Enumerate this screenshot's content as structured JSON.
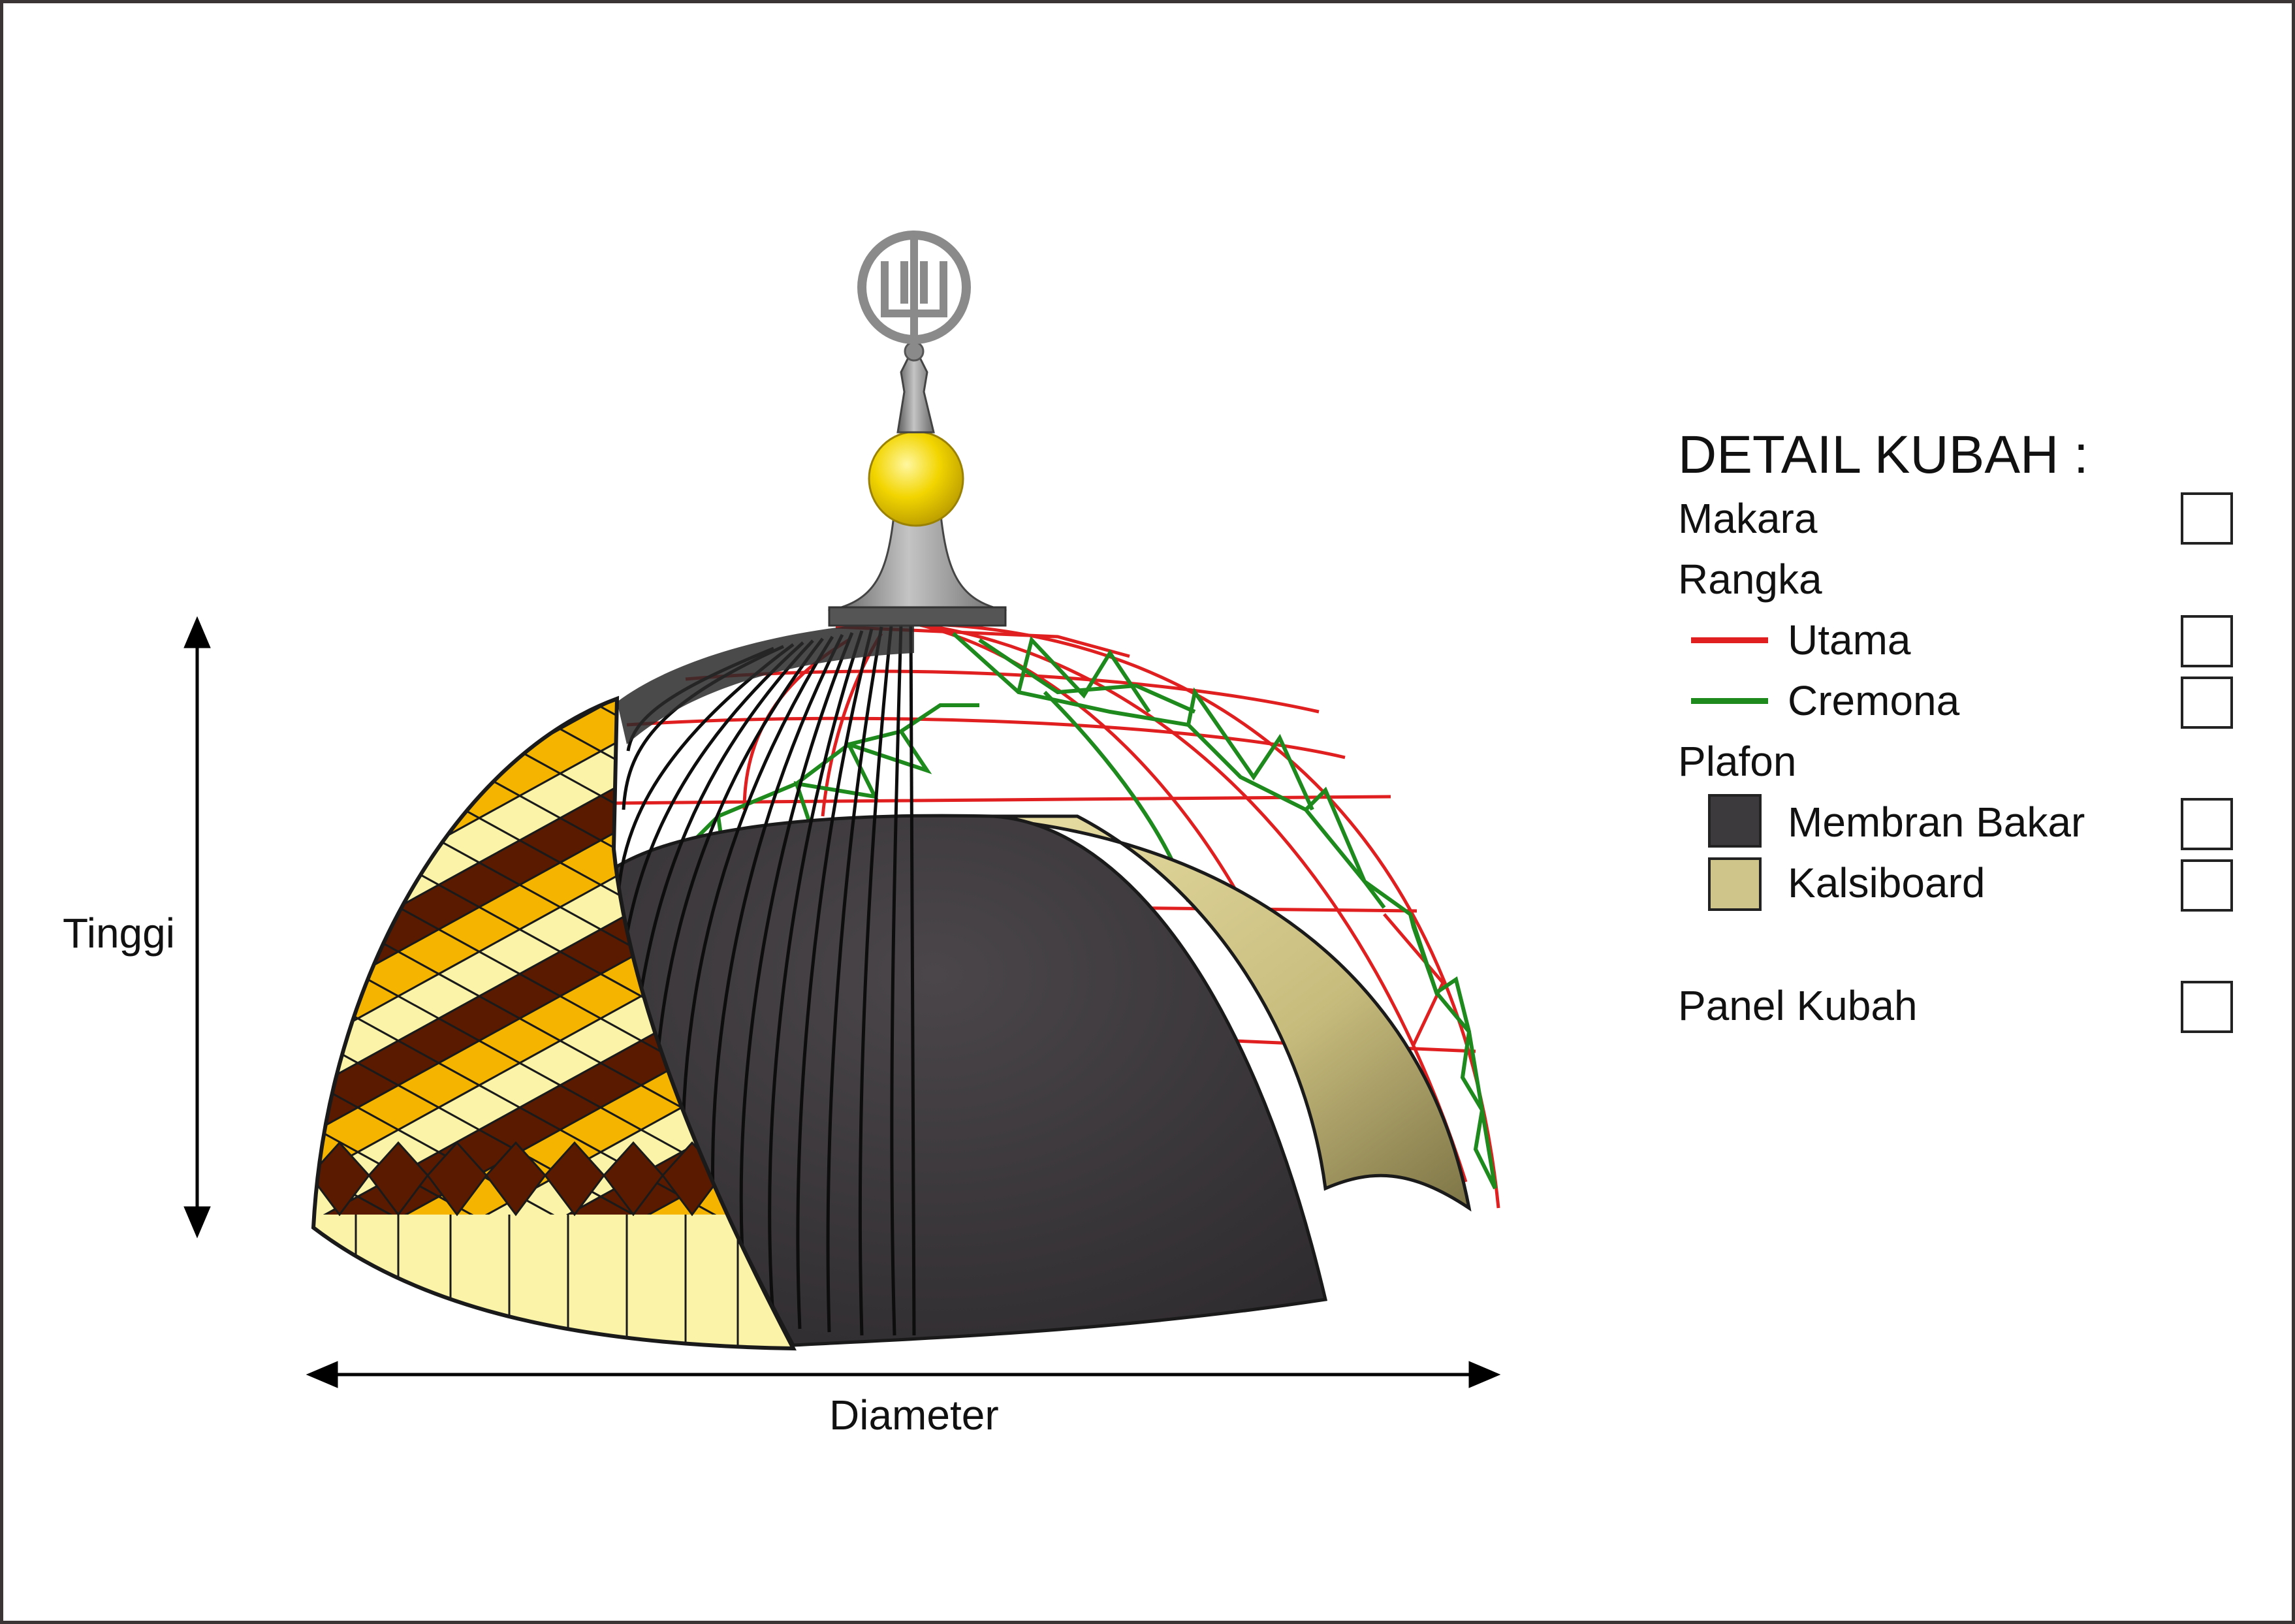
{
  "dimensions": {
    "height_label": "Tinggi",
    "width_label": "Diameter"
  },
  "legend": {
    "title": "DETAIL KUBAH :",
    "items": [
      {
        "label": "Makara",
        "has_checkbox": true
      },
      {
        "label": "Rangka",
        "has_checkbox": false
      },
      {
        "label": "Utama",
        "swatch": "line",
        "color": "#e02020",
        "has_checkbox": true
      },
      {
        "label": "Cremona",
        "swatch": "line",
        "color": "#1e8a1e",
        "has_checkbox": true
      },
      {
        "label": "Plafon",
        "has_checkbox": false
      },
      {
        "label": "Membran Bakar",
        "swatch": "square",
        "color": "#3d3a3d",
        "has_checkbox": true
      },
      {
        "label": "Kalsiboard",
        "swatch": "square",
        "color": "#cfc489",
        "has_checkbox": true
      },
      {
        "label": "Panel Kubah",
        "has_checkbox": true
      }
    ]
  },
  "colors": {
    "frame": "#3b3535",
    "membran": "#3d3a3d",
    "kalsiboard": "#cfc489",
    "rangka_utama": "#e02020",
    "cremona": "#1e8a1e",
    "makara_ball": "#f2d500",
    "makara_metal": "#8a8a8a",
    "panel_light": "#fbf4a8",
    "panel_mid": "#f4b400",
    "panel_dark": "#5a1a00"
  }
}
